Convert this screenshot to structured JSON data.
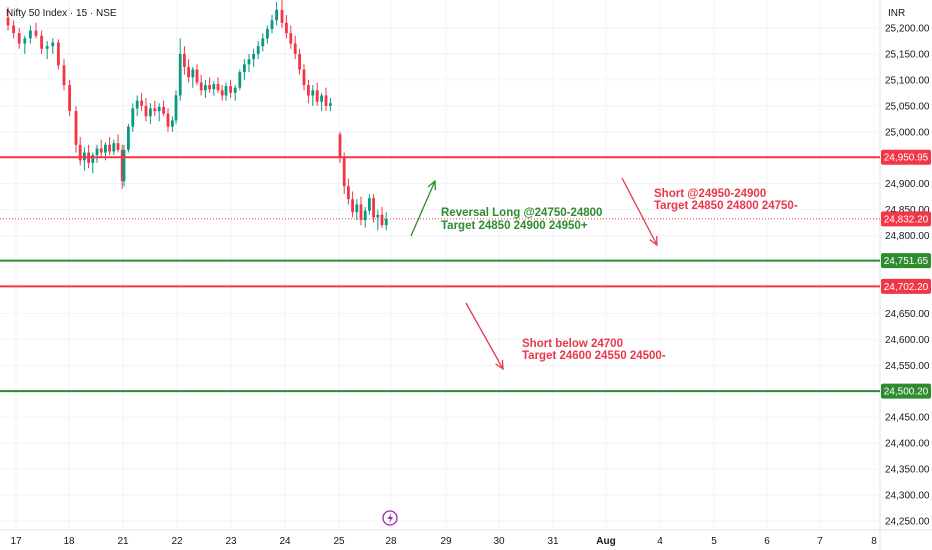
{
  "header": {
    "symbol_title": "Nifty 50 Index · 15 · NSE",
    "currency": "INR"
  },
  "colors": {
    "up": "#089981",
    "down": "#f23645",
    "level_red": "#f23645",
    "level_green": "#2e8b2e",
    "grid": "#f0f3fa",
    "current": "#f23645",
    "annotation_green": "#2e8b2e",
    "annotation_red": "#e8384a"
  },
  "chart_data": {
    "type": "candlestick",
    "y_range": [
      24230,
      25270
    ],
    "y_ticks": [
      {
        "value": 25200,
        "label": "25,200.00"
      },
      {
        "value": 25150,
        "label": "25,150.00"
      },
      {
        "value": 25100,
        "label": "25,100.00"
      },
      {
        "value": 25050,
        "label": "25,050.00"
      },
      {
        "value": 25000,
        "label": "25,000.00"
      },
      {
        "value": 24900,
        "label": "24,900.00"
      },
      {
        "value": 24850,
        "label": "24,850.00"
      },
      {
        "value": 24800,
        "label": "24,800.00"
      },
      {
        "value": 24650,
        "label": "24,650.00"
      },
      {
        "value": 24600,
        "label": "24,600.00"
      },
      {
        "value": 24550,
        "label": "24,550.00"
      },
      {
        "value": 24450,
        "label": "24,450.00"
      },
      {
        "value": 24400,
        "label": "24,400.00"
      },
      {
        "value": 24350,
        "label": "24,350.00"
      },
      {
        "value": 24300,
        "label": "24,300.00"
      },
      {
        "value": 24250,
        "label": "24,250.00"
      }
    ],
    "x_ticks": [
      {
        "label": "17",
        "bold": false
      },
      {
        "label": "18",
        "bold": false
      },
      {
        "label": "21",
        "bold": false
      },
      {
        "label": "22",
        "bold": false
      },
      {
        "label": "23",
        "bold": false
      },
      {
        "label": "24",
        "bold": false
      },
      {
        "label": "25",
        "bold": false
      },
      {
        "label": "28",
        "bold": false
      },
      {
        "label": "29",
        "bold": false
      },
      {
        "label": "30",
        "bold": false
      },
      {
        "label": "31",
        "bold": false
      },
      {
        "label": "Aug",
        "bold": true
      },
      {
        "label": "4",
        "bold": false
      },
      {
        "label": "5",
        "bold": false
      },
      {
        "label": "6",
        "bold": false
      },
      {
        "label": "7",
        "bold": false
      },
      {
        "label": "8",
        "bold": false
      }
    ],
    "levels": [
      {
        "value": 24950.95,
        "label": "24,950.95",
        "color": "#f23645",
        "style": "solid"
      },
      {
        "value": 24832.2,
        "label": "24,832.20",
        "color": "#f23645",
        "style": "dotted"
      },
      {
        "value": 24751.65,
        "label": "24,751.65",
        "color": "#2e8b2e",
        "style": "solid"
      },
      {
        "value": 24702.2,
        "label": "24,702.20",
        "color": "#f23645",
        "style": "solid"
      },
      {
        "value": 24500.2,
        "label": "24,500.20",
        "color": "#2e8b2e",
        "style": "solid"
      }
    ],
    "candles": [
      {
        "day": "17",
        "ohlc": [
          [
            25220,
            25240,
            25195,
            25205
          ],
          [
            25205,
            25215,
            25180,
            25190
          ],
          [
            25190,
            25200,
            25160,
            25170
          ],
          [
            25170,
            25185,
            25150,
            25180
          ],
          [
            25180,
            25205,
            25170,
            25195
          ],
          [
            25195,
            25210,
            25180,
            25185
          ],
          [
            25185,
            25195,
            25150,
            25160
          ],
          [
            25160,
            25175,
            25140,
            25165
          ],
          [
            25165,
            25180,
            25150,
            25172
          ],
          [
            25172,
            25178,
            25120,
            25128
          ],
          [
            25128,
            25140,
            25080,
            25090
          ],
          [
            25090,
            25100,
            25030,
            25040
          ]
        ]
      },
      {
        "day": "18",
        "ohlc": [
          [
            25040,
            25050,
            24960,
            24975
          ],
          [
            24975,
            24990,
            24935,
            24945
          ],
          [
            24945,
            24970,
            24925,
            24960
          ],
          [
            24960,
            24975,
            24930,
            24940
          ],
          [
            24940,
            24960,
            24920,
            24955
          ],
          [
            24955,
            24975,
            24940,
            24968
          ],
          [
            24968,
            24985,
            24950,
            24960
          ],
          [
            24960,
            24980,
            24945,
            24975
          ],
          [
            24975,
            24990,
            24955,
            24962
          ],
          [
            24962,
            24985,
            24955,
            24978
          ],
          [
            24978,
            24995,
            24960,
            24965
          ],
          [
            24965,
            24975,
            24890,
            24905
          ]
        ]
      },
      {
        "day": "21",
        "ohlc": [
          [
            24905,
            24975,
            24895,
            24965
          ],
          [
            24965,
            25015,
            24960,
            25010
          ],
          [
            25010,
            25055,
            25000,
            25045
          ],
          [
            25045,
            25070,
            25030,
            25060
          ],
          [
            25060,
            25075,
            25040,
            25050
          ],
          [
            25050,
            25065,
            25020,
            25030
          ],
          [
            25030,
            25055,
            25015,
            25045
          ],
          [
            25045,
            25060,
            25030,
            25040
          ],
          [
            25040,
            25055,
            25020,
            25048
          ],
          [
            25048,
            25060,
            25030,
            25035
          ],
          [
            25035,
            25045,
            25000,
            25010
          ],
          [
            25010,
            25030,
            25000,
            25022
          ]
        ]
      },
      {
        "day": "22",
        "ohlc": [
          [
            25022,
            25080,
            25015,
            25070
          ],
          [
            25070,
            25180,
            25060,
            25150
          ],
          [
            25150,
            25165,
            25110,
            25125
          ],
          [
            25125,
            25140,
            25095,
            25105
          ],
          [
            25105,
            25125,
            25085,
            25120
          ],
          [
            25120,
            25130,
            25090,
            25095
          ],
          [
            25095,
            25110,
            25070,
            25080
          ],
          [
            25080,
            25100,
            25065,
            25090
          ],
          [
            25090,
            25105,
            25075,
            25082
          ],
          [
            25082,
            25098,
            25070,
            25092
          ],
          [
            25092,
            25105,
            25075,
            25080
          ],
          [
            25080,
            25090,
            25060,
            25070
          ]
        ]
      },
      {
        "day": "23",
        "ohlc": [
          [
            25070,
            25095,
            25060,
            25088
          ],
          [
            25088,
            25100,
            25065,
            25075
          ],
          [
            25075,
            25090,
            25060,
            25085
          ],
          [
            25085,
            25120,
            25080,
            25115
          ],
          [
            25115,
            25140,
            25100,
            25130
          ],
          [
            25130,
            25150,
            25115,
            25140
          ],
          [
            25140,
            25160,
            25125,
            25150
          ],
          [
            25150,
            25175,
            25140,
            25165
          ],
          [
            25165,
            25190,
            25155,
            25180
          ],
          [
            25180,
            25205,
            25170,
            25198
          ],
          [
            25198,
            25225,
            25190,
            25215
          ],
          [
            25215,
            25250,
            25205,
            25235
          ]
        ]
      },
      {
        "day": "24",
        "ohlc": [
          [
            25235,
            25262,
            25200,
            25210
          ],
          [
            25210,
            25225,
            25180,
            25190
          ],
          [
            25190,
            25205,
            25160,
            25170
          ],
          [
            25170,
            25185,
            25140,
            25150
          ],
          [
            25150,
            25160,
            25110,
            25120
          ],
          [
            25120,
            25130,
            25080,
            25090
          ],
          [
            25090,
            25100,
            25055,
            25070
          ],
          [
            25070,
            25090,
            25050,
            25080
          ],
          [
            25080,
            25095,
            25050,
            25058
          ],
          [
            25058,
            25075,
            25040,
            25070
          ],
          [
            25070,
            25085,
            25040,
            25050
          ],
          [
            25050,
            25065,
            25040,
            25055
          ]
        ]
      },
      {
        "day": "25",
        "ohlc": [
          [
            24995,
            25000,
            24940,
            24950
          ],
          [
            24950,
            24960,
            24880,
            24895
          ],
          [
            24895,
            24910,
            24860,
            24870
          ],
          [
            24870,
            24885,
            24835,
            24845
          ],
          [
            24845,
            24870,
            24830,
            24860
          ],
          [
            24860,
            24875,
            24820,
            24830
          ],
          [
            24830,
            24855,
            24815,
            24848
          ],
          [
            24848,
            24880,
            24840,
            24872
          ],
          [
            24872,
            24880,
            24825,
            24835
          ],
          [
            24835,
            24850,
            24810,
            24840
          ],
          [
            24840,
            24855,
            24815,
            24820
          ],
          [
            24820,
            24845,
            24810,
            24832
          ]
        ]
      }
    ]
  },
  "annotations": {
    "reversal_line1": "Reversal Long  @24750-24800",
    "reversal_line2": "Target 24850 24900 24950+",
    "short_upper_line1": "Short @24950-24900",
    "short_upper_line2": "Target 24850 24800 24750-",
    "short_lower_line1": "Short below 24700",
    "short_lower_line2": "Target 24600 24550 24500-"
  }
}
